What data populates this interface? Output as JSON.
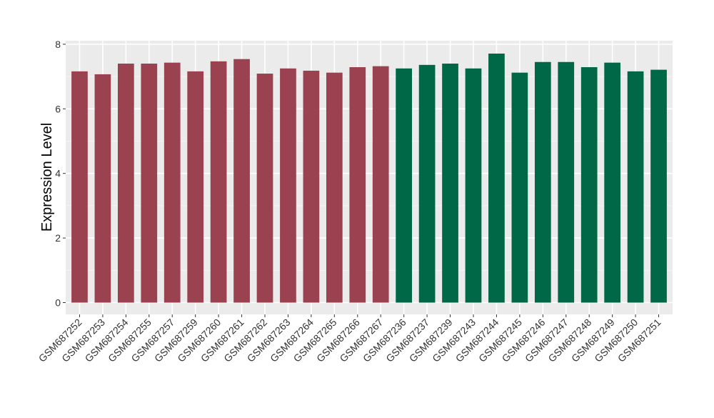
{
  "chart_data": {
    "type": "bar",
    "title": "",
    "xlabel": "",
    "ylabel": "Expression Level",
    "ylim": [
      0,
      8
    ],
    "yticks": [
      0,
      2,
      4,
      6,
      8
    ],
    "grid": true,
    "categories": [
      "GSM687252",
      "GSM687253",
      "GSM687254",
      "GSM687255",
      "GSM687257",
      "GSM687259",
      "GSM687260",
      "GSM687261",
      "GSM687262",
      "GSM687263",
      "GSM687264",
      "GSM687265",
      "GSM687266",
      "GSM687267",
      "GSM687236",
      "GSM687237",
      "GSM687239",
      "GSM687243",
      "GSM687244",
      "GSM687245",
      "GSM687246",
      "GSM687247",
      "GSM687248",
      "GSM687249",
      "GSM687250",
      "GSM687251"
    ],
    "values": [
      7.16,
      7.07,
      7.4,
      7.4,
      7.43,
      7.16,
      7.47,
      7.54,
      7.09,
      7.25,
      7.18,
      7.12,
      7.29,
      7.32,
      7.25,
      7.36,
      7.4,
      7.25,
      7.71,
      7.12,
      7.45,
      7.45,
      7.29,
      7.43,
      7.16,
      7.21
    ],
    "colors": [
      "#9b4250",
      "#9b4250",
      "#9b4250",
      "#9b4250",
      "#9b4250",
      "#9b4250",
      "#9b4250",
      "#9b4250",
      "#9b4250",
      "#9b4250",
      "#9b4250",
      "#9b4250",
      "#9b4250",
      "#9b4250",
      "#006846",
      "#006846",
      "#006846",
      "#006846",
      "#006846",
      "#006846",
      "#006846",
      "#006846",
      "#006846",
      "#006846",
      "#006846",
      "#006846"
    ],
    "panel_background": "#ebebeb"
  }
}
